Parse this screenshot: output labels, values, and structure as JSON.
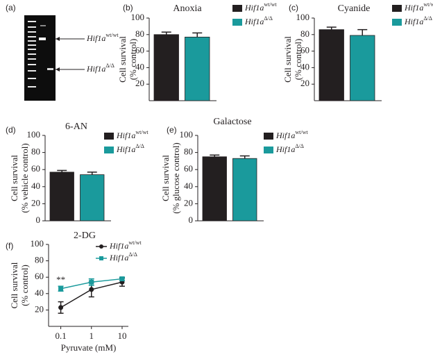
{
  "gel": {
    "label": "(a)",
    "bands": [
      {
        "name": "Hif1a",
        "sup": "wt/wt"
      },
      {
        "name": "Hif1a",
        "sup": "Δ/Δ"
      }
    ]
  },
  "chart_data": [
    {
      "type": "bar",
      "label": "(b)",
      "title": "Anoxia",
      "ylabel": [
        "Cell survival",
        "(% control)"
      ],
      "ylim": [
        0,
        100
      ],
      "yticks": [
        20,
        40,
        60,
        80,
        100
      ],
      "series": [
        {
          "name": "Hif1a",
          "sup": "wt/wt",
          "color": "#231f20",
          "values": [
            80
          ],
          "errors": [
            3
          ]
        },
        {
          "name": "Hif1a",
          "sup": "Δ/Δ",
          "color": "#1a9a9c",
          "values": [
            77
          ],
          "errors": [
            5
          ]
        }
      ]
    },
    {
      "type": "bar",
      "label": "(c)",
      "title": "Cyanide",
      "ylabel": [
        "Cell survival",
        "(% control)"
      ],
      "ylim": [
        0,
        100
      ],
      "yticks": [
        20,
        40,
        60,
        80,
        100
      ],
      "series": [
        {
          "name": "Hif1a",
          "sup": "wt/wt",
          "color": "#231f20",
          "values": [
            86
          ],
          "errors": [
            3
          ]
        },
        {
          "name": "Hif1a",
          "sup": "Δ/Δ",
          "color": "#1a9a9c",
          "values": [
            79
          ],
          "errors": [
            7
          ]
        }
      ]
    },
    {
      "type": "bar",
      "label": "(d)",
      "title": "6-AN",
      "ylabel": [
        "Cell survival",
        "(% vehicle control)"
      ],
      "ylim": [
        0,
        100
      ],
      "yticks": [
        0,
        20,
        40,
        60,
        80,
        100
      ],
      "series": [
        {
          "name": "Hif1a",
          "sup": "wt/wt",
          "color": "#231f20",
          "values": [
            57
          ],
          "errors": [
            2
          ]
        },
        {
          "name": "Hif1a",
          "sup": "Δ/Δ",
          "color": "#1a9a9c",
          "values": [
            54
          ],
          "errors": [
            3
          ]
        }
      ]
    },
    {
      "type": "bar",
      "label": "(e)",
      "title": "Galactose",
      "ylabel": [
        "Cell survival",
        "(% glucose control)"
      ],
      "ylim": [
        0,
        100
      ],
      "yticks": [
        0,
        20,
        40,
        60,
        80,
        100
      ],
      "series": [
        {
          "name": "Hif1a",
          "sup": "wt/wt",
          "color": "#231f20",
          "values": [
            75
          ],
          "errors": [
            2
          ]
        },
        {
          "name": "Hif1a",
          "sup": "Δ/Δ",
          "color": "#1a9a9c",
          "values": [
            73
          ],
          "errors": [
            3
          ]
        }
      ]
    },
    {
      "type": "line",
      "label": "(f)",
      "title": "2-DG",
      "ylabel": [
        "Cell survival",
        "(% control)"
      ],
      "xlabel": "Pyruvate (mM)",
      "x": [
        0.1,
        1,
        10
      ],
      "xlim": [
        0.04,
        16
      ],
      "xticks": [
        0.1,
        1,
        10
      ],
      "xscale": "log",
      "ylim": [
        0,
        100
      ],
      "yticks": [
        20,
        40,
        60,
        80,
        100
      ],
      "annotations": [
        "**"
      ],
      "series": [
        {
          "name": "Hif1a",
          "sup": "wt/wt",
          "color": "#231f20",
          "marker": "circle",
          "values": [
            23,
            45,
            54
          ],
          "errors": [
            7,
            9,
            5
          ]
        },
        {
          "name": "Hif1a",
          "sup": "Δ/Δ",
          "color": "#1a9a9c",
          "marker": "square",
          "values": [
            46,
            54,
            58
          ],
          "errors": [
            3,
            4,
            2
          ]
        }
      ]
    }
  ]
}
